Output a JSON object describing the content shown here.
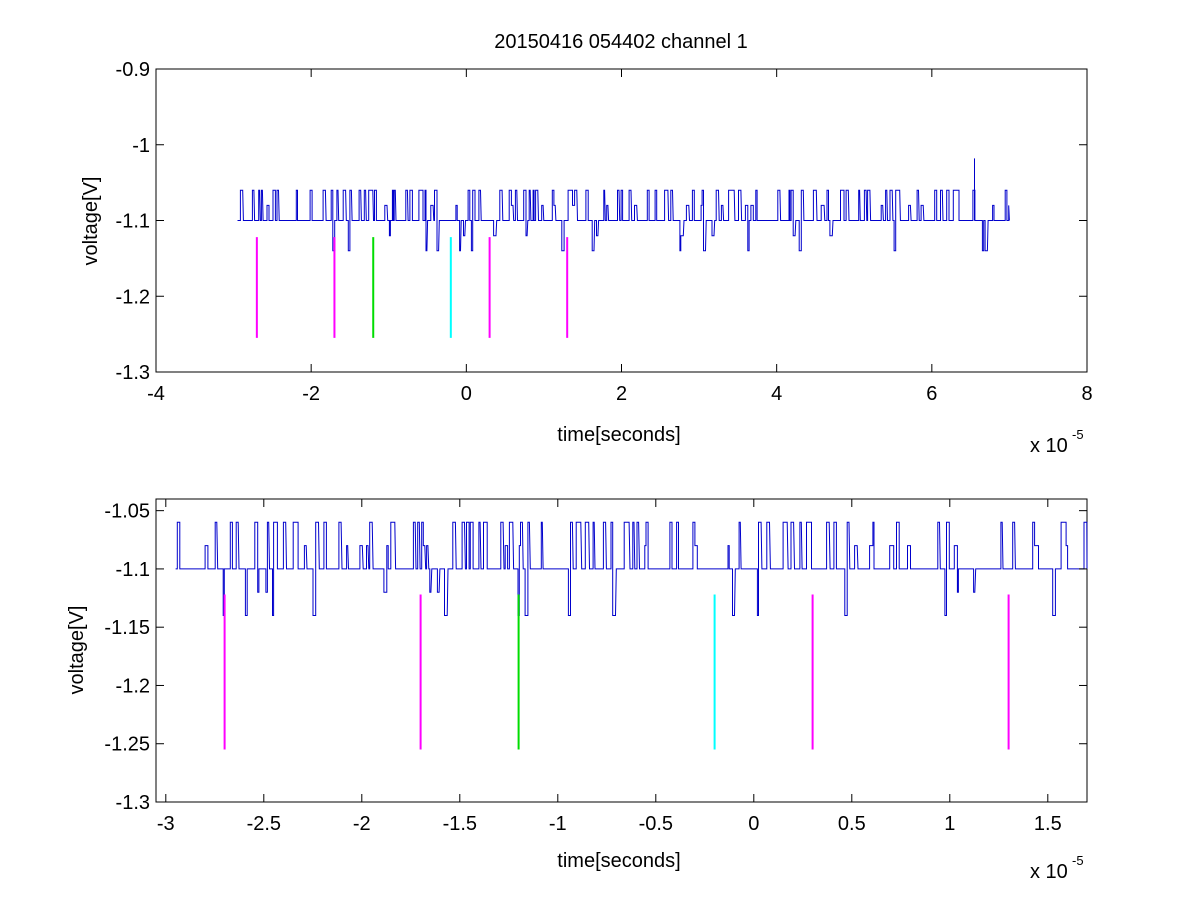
{
  "title": "20150416 054402 channel 1",
  "colors": {
    "signal": "#0000cc",
    "marker_magenta": "#ff00ff",
    "marker_green": "#00dd00",
    "marker_cyan": "#00ffff",
    "axes": "#000000",
    "background": "#ffffff"
  },
  "chart_data": [
    {
      "type": "line",
      "title": "20150416 054402 channel 1",
      "xlabel": "time[seconds]",
      "ylabel": "voltage[V]",
      "x_exponent": "x 10",
      "x_exponent_power": "-5",
      "xlim": [
        -4,
        8
      ],
      "ylim": [
        -1.3,
        -0.9
      ],
      "xticks": [
        "-4",
        "-2",
        "0",
        "2",
        "4",
        "6",
        "8"
      ],
      "yticks": [
        "-1.3",
        "-1.2",
        "-1.1",
        "-1",
        "-0.9"
      ],
      "grid": false,
      "series": [
        {
          "kind": "noisy-trace",
          "x_range": [
            -2.95,
            7.0
          ],
          "baseline": -1.1,
          "high_level": -1.06,
          "low_level": -1.14,
          "spike": {
            "x": 6.55,
            "y": -1.018
          }
        }
      ],
      "markers": [
        {
          "x": -2.7,
          "y_from": -1.122,
          "y_to": -1.255,
          "color": "magenta"
        },
        {
          "x": -1.7,
          "y_from": -1.122,
          "y_to": -1.255,
          "color": "magenta"
        },
        {
          "x": -1.2,
          "y_from": -1.122,
          "y_to": -1.255,
          "color": "green"
        },
        {
          "x": -0.2,
          "y_from": -1.122,
          "y_to": -1.255,
          "color": "cyan"
        },
        {
          "x": 0.3,
          "y_from": -1.122,
          "y_to": -1.255,
          "color": "magenta"
        },
        {
          "x": 1.3,
          "y_from": -1.122,
          "y_to": -1.255,
          "color": "magenta"
        }
      ]
    },
    {
      "type": "line",
      "xlabel": "time[seconds]",
      "ylabel": "voltage[V]",
      "x_exponent": "x 10",
      "x_exponent_power": "-5",
      "xlim": [
        -3.05,
        1.7
      ],
      "ylim": [
        -1.3,
        -1.04
      ],
      "xticks": [
        "-3",
        "-2.5",
        "-2",
        "-1.5",
        "-1",
        "-0.5",
        "0",
        "0.5",
        "1",
        "1.5"
      ],
      "xtick_values": [
        -3,
        -2.5,
        -2,
        -1.5,
        -1,
        -0.5,
        0,
        0.5,
        1,
        1.5
      ],
      "yticks": [
        "-1.3",
        "-1.25",
        "-1.2",
        "-1.15",
        "-1.1",
        "-1.05"
      ],
      "ytick_values": [
        -1.3,
        -1.25,
        -1.2,
        -1.15,
        -1.1,
        -1.05
      ],
      "grid": false,
      "series": [
        {
          "kind": "noisy-trace",
          "x_range": [
            -2.95,
            1.7
          ],
          "baseline": -1.1,
          "high_level": -1.06,
          "low_level": -1.14
        }
      ],
      "markers": [
        {
          "x": -2.7,
          "y_from": -1.122,
          "y_to": -1.255,
          "color": "magenta"
        },
        {
          "x": -1.7,
          "y_from": -1.122,
          "y_to": -1.255,
          "color": "magenta"
        },
        {
          "x": -1.2,
          "y_from": -1.122,
          "y_to": -1.255,
          "color": "green"
        },
        {
          "x": -0.2,
          "y_from": -1.122,
          "y_to": -1.255,
          "color": "cyan"
        },
        {
          "x": 0.3,
          "y_from": -1.122,
          "y_to": -1.255,
          "color": "magenta"
        },
        {
          "x": 1.3,
          "y_from": -1.122,
          "y_to": -1.255,
          "color": "magenta"
        }
      ]
    }
  ]
}
